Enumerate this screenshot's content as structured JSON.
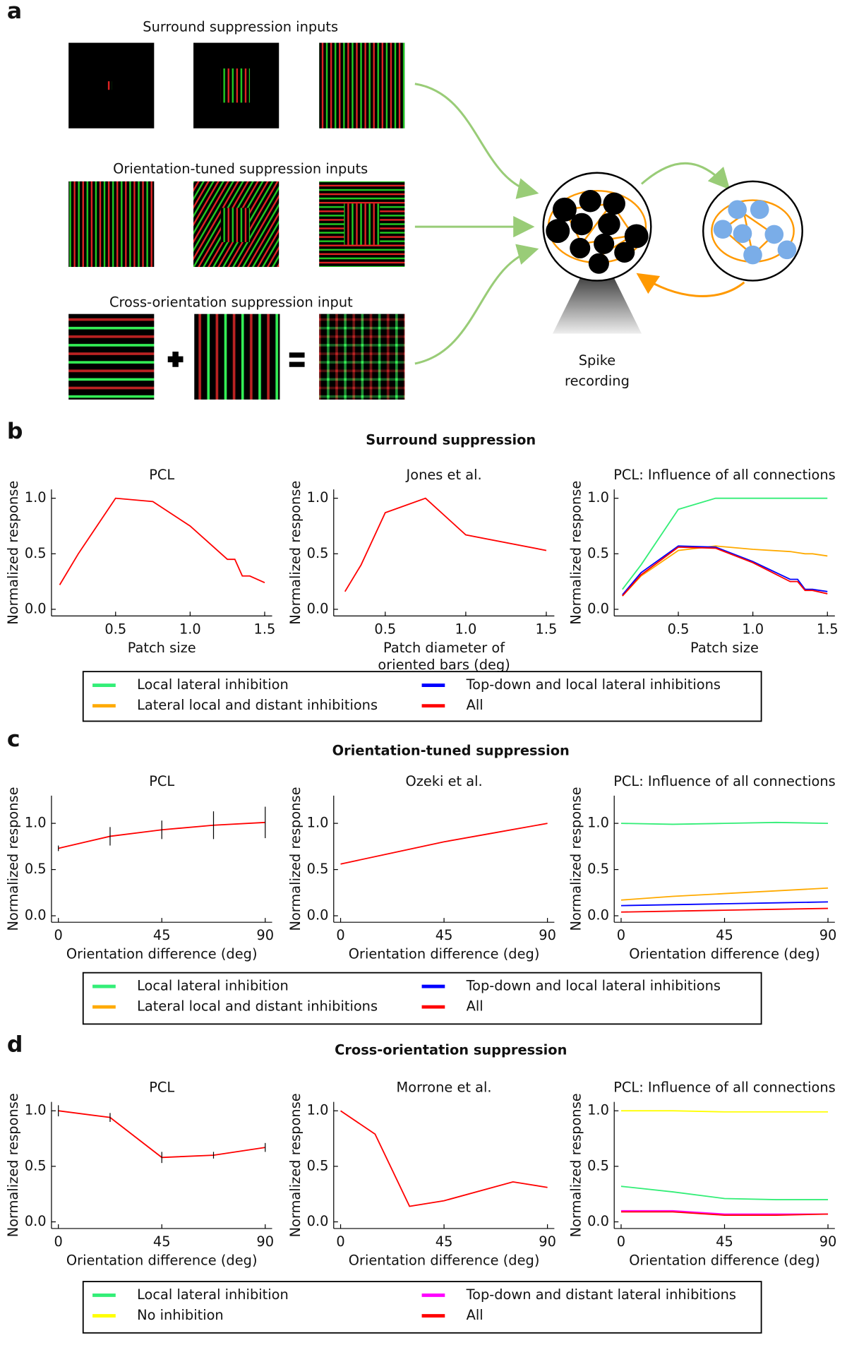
{
  "panel_a": {
    "label": "a",
    "input_titles": [
      "Surround suppression inputs",
      "Orientation-tuned suppression inputs",
      "Cross-orientation suppression input"
    ],
    "recording_label": [
      "Spike",
      "recording"
    ]
  },
  "panels": [
    {
      "label": "b",
      "title": "Surround suppression"
    },
    {
      "label": "c",
      "title": "Orientation-tuned suppression"
    },
    {
      "label": "d",
      "title": "Cross-orientation suppression"
    }
  ],
  "chart_data": [
    {
      "type": "line",
      "title": "PCL",
      "x_label": "Patch size",
      "y_label": "Normalized response",
      "x": [
        0.125,
        0.25,
        0.5,
        0.75,
        1.0,
        1.25,
        1.3,
        1.35,
        1.4,
        1.5
      ],
      "values": [
        0.22,
        0.5,
        1.0,
        0.97,
        0.75,
        0.45,
        0.45,
        0.3,
        0.3,
        0.24
      ],
      "color": "#ff0000",
      "xlim": [
        0.07,
        1.55
      ],
      "ylim": [
        -0.06,
        1.08
      ],
      "xticks": [
        0.5,
        {
          "value": 1,
          "label": "1.0"
        },
        1.5
      ],
      "yticks": [
        {
          "value": 0,
          "label": "0.0"
        },
        0.5,
        {
          "value": 1,
          "label": "1.0"
        }
      ]
    },
    {
      "type": "line",
      "title": "Jones et al.",
      "x_label": [
        "Patch diameter of",
        "oriented bars (deg)"
      ],
      "y_label": "Normalized response",
      "x": [
        0.25,
        0.35,
        0.5,
        0.75,
        1.0,
        1.5
      ],
      "values": [
        0.16,
        0.4,
        0.87,
        1.0,
        0.67,
        0.53
      ],
      "color": "#ff0000",
      "xlim": [
        0.18,
        1.55
      ],
      "ylim": [
        -0.06,
        1.08
      ],
      "xticks": [
        0.5,
        {
          "value": 1,
          "label": "1.0"
        },
        1.5
      ],
      "yticks": [
        {
          "value": 0,
          "label": "0.0"
        },
        0.5,
        {
          "value": 1,
          "label": "1.0"
        }
      ]
    },
    {
      "type": "line",
      "title": "PCL: Influence of all connections",
      "x_label": "Patch size",
      "y_label": "Normalized response",
      "x": [
        0.125,
        0.25,
        0.5,
        0.75,
        1.0,
        1.25,
        1.3,
        1.35,
        1.4,
        1.5
      ],
      "series": [
        {
          "name": "Local lateral inhibition",
          "color": "#33ee77",
          "values": [
            0.18,
            0.4,
            0.9,
            1.0,
            1.0,
            1.0,
            1.0,
            1.0,
            1.0,
            1.0
          ]
        },
        {
          "name": "Lateral local and distant inhibitions",
          "color": "#ffaa00",
          "values": [
            0.12,
            0.3,
            0.53,
            0.57,
            0.54,
            0.52,
            0.51,
            0.5,
            0.5,
            0.48
          ]
        },
        {
          "name": "Top-down and local lateral inhibitions",
          "color": "#0000ff",
          "values": [
            0.13,
            0.33,
            0.57,
            0.56,
            0.43,
            0.27,
            0.27,
            0.18,
            0.18,
            0.16
          ]
        },
        {
          "name": "All",
          "color": "#ff0000",
          "values": [
            0.12,
            0.31,
            0.56,
            0.55,
            0.42,
            0.25,
            0.25,
            0.17,
            0.17,
            0.14
          ]
        }
      ],
      "xlim": [
        0.07,
        1.55
      ],
      "ylim": [
        -0.06,
        1.08
      ],
      "xticks": [
        0.5,
        {
          "value": 1,
          "label": "1.0"
        },
        1.5
      ],
      "yticks": [
        {
          "value": 0,
          "label": "0.0"
        },
        0.5,
        {
          "value": 1,
          "label": "1.0"
        }
      ]
    },
    {
      "type": "line",
      "title": "PCL",
      "x_label": "Orientation difference (deg)",
      "y_label": "Normalized response",
      "x": [
        0,
        22.5,
        45,
        67.5,
        90
      ],
      "values": [
        0.73,
        0.86,
        0.93,
        0.98,
        1.01
      ],
      "errors": [
        0.03,
        0.1,
        0.1,
        0.15,
        0.17
      ],
      "color": "#ff0000",
      "xlim": [
        -3,
        93
      ],
      "ylim": [
        -0.07,
        1.3
      ],
      "xticks": [
        0,
        45,
        90
      ],
      "yticks": [
        {
          "value": 0,
          "label": "0.0"
        },
        0.5,
        {
          "value": 1,
          "label": "1.0"
        }
      ]
    },
    {
      "type": "line",
      "title": "Ozeki et al.",
      "x_label": "Orientation difference (deg)",
      "y_label": "Normalized response",
      "x": [
        0,
        22.5,
        45,
        67.5,
        90
      ],
      "values": [
        0.56,
        0.68,
        0.8,
        0.9,
        1.0
      ],
      "color": "#ff0000",
      "xlim": [
        -3,
        93
      ],
      "ylim": [
        -0.07,
        1.3
      ],
      "xticks": [
        0,
        45,
        90
      ],
      "yticks": [
        {
          "value": 0,
          "label": "0.0"
        },
        0.5,
        {
          "value": 1,
          "label": "1.0"
        }
      ]
    },
    {
      "type": "line",
      "title": "PCL: Influence of all connections",
      "x_label": "Orientation difference (deg)",
      "y_label": "Normalized response",
      "x": [
        0,
        22.5,
        45,
        67.5,
        90
      ],
      "series": [
        {
          "name": "Local lateral inhibition",
          "color": "#33ee77",
          "values": [
            1.0,
            0.99,
            1.0,
            1.01,
            1.0
          ]
        },
        {
          "name": "Lateral local and distant inhibitions",
          "color": "#ffaa00",
          "values": [
            0.17,
            0.21,
            0.24,
            0.27,
            0.3
          ]
        },
        {
          "name": "Top-down and local lateral inhibitions",
          "color": "#0000ff",
          "values": [
            0.11,
            0.12,
            0.13,
            0.14,
            0.15
          ]
        },
        {
          "name": "All",
          "color": "#ff0000",
          "values": [
            0.04,
            0.05,
            0.06,
            0.07,
            0.08
          ]
        }
      ],
      "xlim": [
        -3,
        93
      ],
      "ylim": [
        -0.07,
        1.3
      ],
      "xticks": [
        0,
        45,
        90
      ],
      "yticks": [
        {
          "value": 0,
          "label": "0.0"
        },
        0.5,
        {
          "value": 1,
          "label": "1.0"
        }
      ]
    },
    {
      "type": "line",
      "title": "PCL",
      "x_label": "Orientation difference (deg)",
      "y_label": "Normalized response",
      "x": [
        0,
        22.5,
        45,
        67.5,
        90
      ],
      "values": [
        1.0,
        0.94,
        0.58,
        0.6,
        0.67
      ],
      "errors": [
        0.05,
        0.04,
        0.05,
        0.03,
        0.04
      ],
      "color": "#ff0000",
      "xlim": [
        -3,
        93
      ],
      "ylim": [
        -0.06,
        1.08
      ],
      "xticks": [
        0,
        45,
        90
      ],
      "yticks": [
        {
          "value": 0,
          "label": "0.0"
        },
        0.5,
        {
          "value": 1,
          "label": "1.0"
        }
      ]
    },
    {
      "type": "line",
      "title": "Morrone et al.",
      "x_label": "Orientation difference (deg)",
      "y_label": "Normalized response",
      "x": [
        0,
        15,
        30,
        45,
        75,
        90
      ],
      "values": [
        1.0,
        0.79,
        0.14,
        0.19,
        0.36,
        0.31
      ],
      "color": "#ff0000",
      "xlim": [
        -3,
        93
      ],
      "ylim": [
        -0.06,
        1.08
      ],
      "xticks": [
        0,
        45,
        90
      ],
      "yticks": [
        {
          "value": 0,
          "label": "0.0"
        },
        0.5,
        {
          "value": 1,
          "label": "1.0"
        }
      ]
    },
    {
      "type": "line",
      "title": "PCL: Influence of all connections",
      "x_label": "Orientation difference (deg)",
      "y_label": "Normalized response",
      "x": [
        0,
        22.5,
        45,
        67.5,
        90
      ],
      "series": [
        {
          "name": "Local lateral inhibition",
          "color": "#33ee77",
          "values": [
            0.32,
            0.27,
            0.21,
            0.2,
            0.2
          ]
        },
        {
          "name": "No inhibition",
          "color": "#ffff00",
          "values": [
            1.0,
            1.0,
            0.99,
            0.99,
            0.99
          ]
        },
        {
          "name": "Top-down and distant lateral inhibitions",
          "color": "#ff00ff",
          "values": [
            0.1,
            0.1,
            0.07,
            0.07,
            0.07
          ]
        },
        {
          "name": "All",
          "color": "#ff0000",
          "values": [
            0.09,
            0.09,
            0.06,
            0.06,
            0.07
          ]
        }
      ],
      "xlim": [
        -3,
        93
      ],
      "ylim": [
        -0.06,
        1.08
      ],
      "xticks": [
        0,
        45,
        90
      ],
      "yticks": [
        {
          "value": 0,
          "label": "0.0"
        },
        0.5,
        {
          "value": 1,
          "label": "1.0"
        }
      ]
    }
  ]
}
